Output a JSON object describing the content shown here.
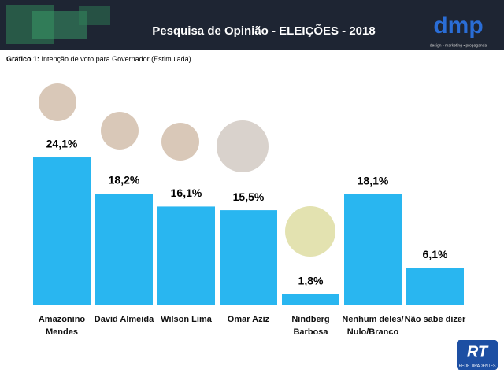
{
  "header": {
    "title": "Pesquisa de Opinião - ELEIÇÕES - 2018",
    "logo": "dmp",
    "logo_tagline": "design • marketing • propaganda"
  },
  "chart_data": {
    "type": "bar",
    "subtitle_label": "Gráfico 1:",
    "subtitle": "Intenção de voto para Governador (Estimulada).",
    "categories": [
      "Amazonino Mendes",
      "David Almeida",
      "Wilson Lima",
      "Omar Aziz",
      "Nindberg Barbosa",
      "Nenhum deles/ Nulo/Branco",
      "Não sabe dizer"
    ],
    "values": [
      24.1,
      18.2,
      16.1,
      15.5,
      1.8,
      18.1,
      6.1
    ],
    "value_labels": [
      "24,1%",
      "18,2%",
      "16,1%",
      "15,5%",
      "1,8%",
      "18,1%",
      "6,1%"
    ],
    "color": "#29b6f0"
  },
  "footer": {
    "logo": "RT",
    "logo_tagline": "REDE TIRADENTES"
  }
}
